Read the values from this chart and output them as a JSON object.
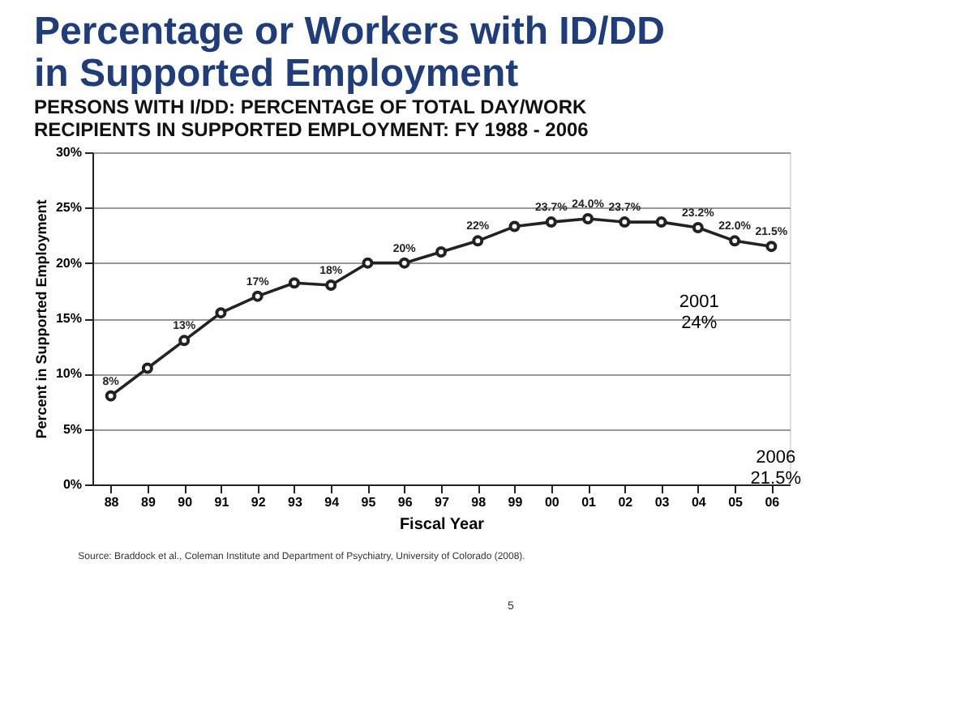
{
  "chart_data": {
    "type": "line",
    "title": "Percentage or Workers with ID/DD in Supported Employment",
    "subtitle": "PERSONS WITH I/DD: PERCENTAGE OF TOTAL DAY/WORK RECIPIENTS IN SUPPORTED EMPLOYMENT: FY 1988 - 2006",
    "xlabel": "Fiscal Year",
    "ylabel": "Percent in Supported Employment",
    "categories": [
      "88",
      "89",
      "90",
      "91",
      "92",
      "93",
      "94",
      "95",
      "96",
      "97",
      "98",
      "99",
      "00",
      "01",
      "02",
      "03",
      "04",
      "05",
      "06"
    ],
    "series": [
      {
        "color": "#222222",
        "values": [
          8,
          10.5,
          13,
          15.5,
          17,
          18.2,
          18,
          20,
          20,
          21,
          22,
          23.3,
          23.7,
          24.0,
          23.7,
          23.7,
          23.2,
          22.0,
          21.5
        ],
        "value_labels": [
          "8%",
          null,
          "13%",
          null,
          "17%",
          null,
          "18%",
          null,
          "20%",
          null,
          "22%",
          null,
          "23.7%",
          "24.0%",
          "23.7%",
          null,
          "23.2%",
          "22.0%",
          "21.5%"
        ]
      }
    ],
    "ylim": [
      0,
      30
    ],
    "yticks": [
      {
        "value": 0,
        "label": "0%"
      },
      {
        "value": 5,
        "label": "5%"
      },
      {
        "value": 10,
        "label": "10%"
      },
      {
        "value": 15,
        "label": "15%"
      },
      {
        "value": 20,
        "label": "20%"
      },
      {
        "value": 25,
        "label": "25%"
      },
      {
        "value": 30,
        "label": "30%"
      }
    ],
    "grid": "y",
    "marker": "circle",
    "line_style": "solid",
    "annotations": [
      "Source: Braddock et al., Coleman Institute and Department of Psychiatry, University of Colorado (2008).",
      "2001\n24%",
      "2006\n21.5%",
      "5"
    ]
  }
}
